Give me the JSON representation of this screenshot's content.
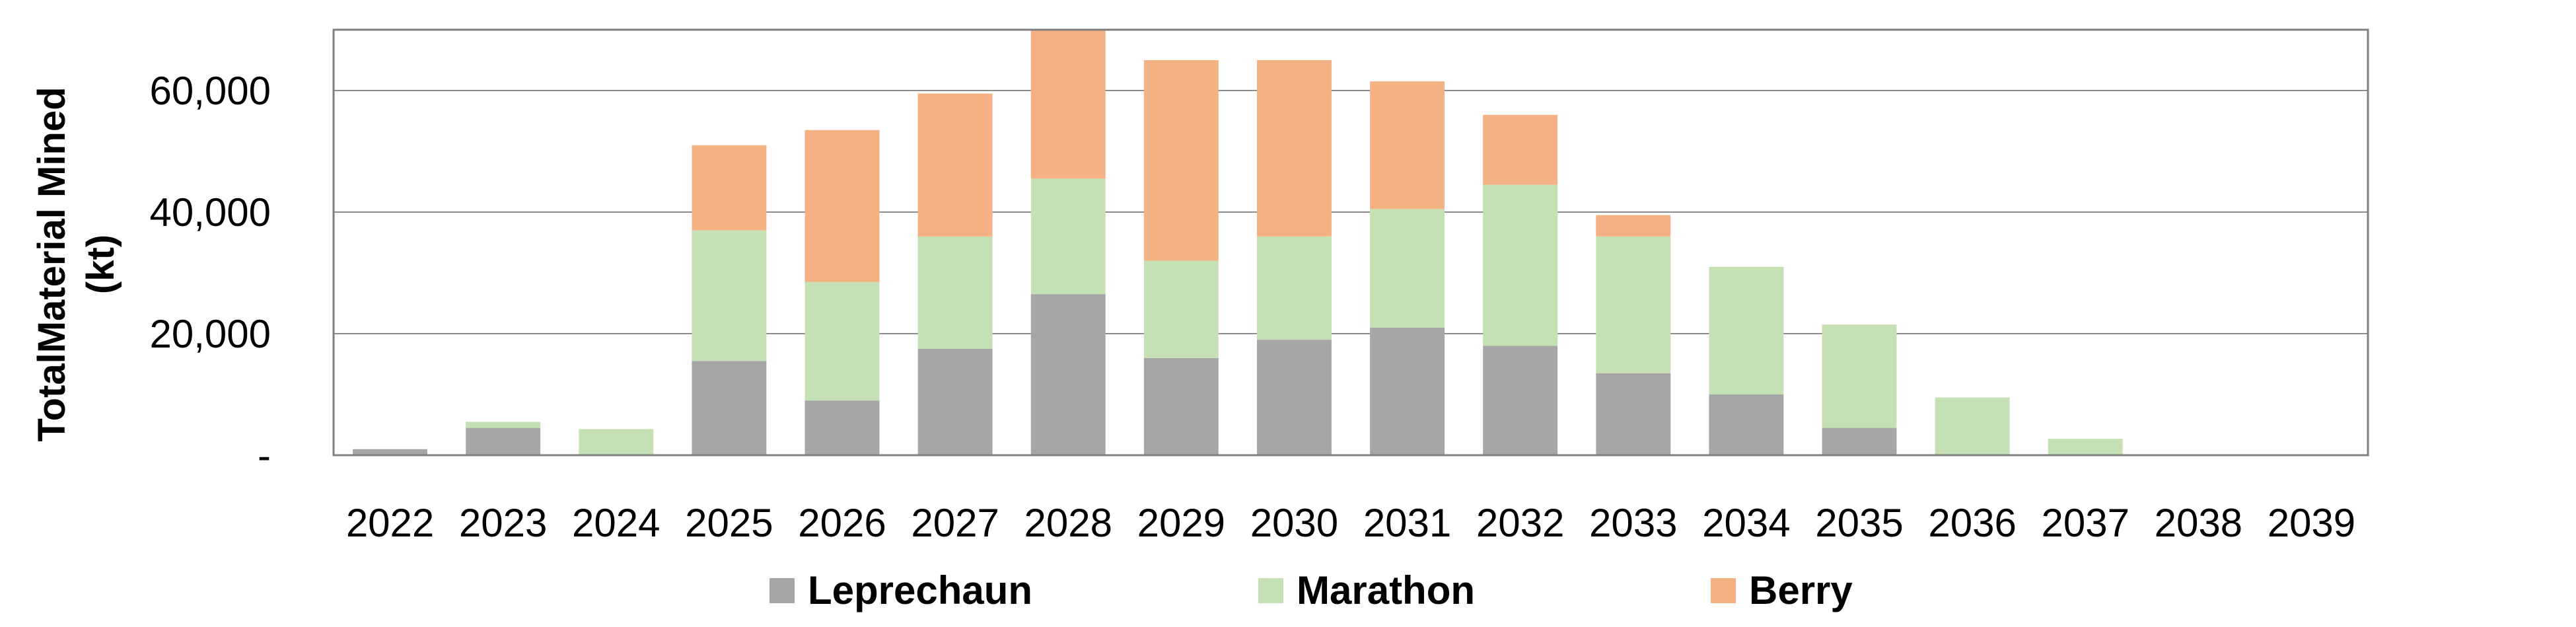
{
  "chart_data": {
    "type": "bar",
    "stacked": true,
    "categories": [
      "2022",
      "2023",
      "2024",
      "2025",
      "2026",
      "2027",
      "2028",
      "2029",
      "2030",
      "2031",
      "2032",
      "2033",
      "2034",
      "2035",
      "2036",
      "2037",
      "2038",
      "2039"
    ],
    "series": [
      {
        "name": "Leprechaun",
        "color": "#a6a6a6",
        "values": [
          1000,
          4500,
          0,
          15500,
          9000,
          17500,
          26500,
          16000,
          19000,
          21000,
          18000,
          13500,
          10000,
          4500,
          0,
          0,
          0,
          0
        ]
      },
      {
        "name": "Marathon",
        "color": "#c5e0b4",
        "values": [
          0,
          1000,
          4300,
          21500,
          19500,
          18500,
          19000,
          16000,
          17000,
          19500,
          26500,
          22500,
          21000,
          17000,
          9500,
          2700,
          0,
          0
        ]
      },
      {
        "name": "Berry",
        "color": "#f4b183",
        "values": [
          0,
          0,
          0,
          14000,
          25000,
          23500,
          24500,
          33000,
          29000,
          21000,
          11500,
          3500,
          0,
          0,
          0,
          0,
          0,
          0
        ]
      }
    ],
    "ylabel_lines": [
      "TotalMaterial  Mined",
      "(kt)"
    ],
    "xlabel": "",
    "ylim": [
      0,
      70000
    ],
    "yticks": [
      0,
      20000,
      40000,
      60000
    ],
    "ytick_labels": [
      "-",
      "20,000",
      "40,000",
      "60,000"
    ],
    "grid": true,
    "legend_position": "bottom"
  }
}
